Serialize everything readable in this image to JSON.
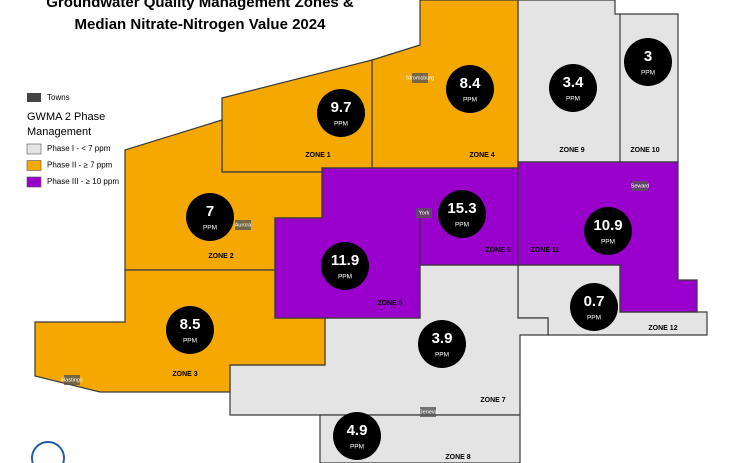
{
  "title": [
    "Groundwater Quality Management Zones &",
    "Median Nitrate-Nitrogen Value 2024"
  ],
  "legend": {
    "towns": "Towns",
    "heading": [
      "GWMA 2 Phase",
      "Management"
    ],
    "items": [
      {
        "label": "Phase I - < 7 ppm",
        "color": "#e4e4e4"
      },
      {
        "label": "Phase II - ≥ 7 ppm",
        "color": "#f5a800"
      },
      {
        "label": "Phase III - ≥ 10 ppm",
        "color": "#9a00cc"
      }
    ]
  },
  "unit": "PPM",
  "zones": [
    {
      "name": "ZONE 1",
      "value": 9.7
    },
    {
      "name": "ZONE 4",
      "value": 8.4
    },
    {
      "name": "ZONE 9",
      "value": 3.4
    },
    {
      "name": "ZONE 10",
      "value": 3
    },
    {
      "name": "ZONE 2",
      "value": 7
    },
    {
      "name": "ZONE 5",
      "value": 15.3
    },
    {
      "name": "ZONE 11",
      "value": 10.9
    },
    {
      "name": "ZONE 6",
      "value": 11.9
    },
    {
      "name": "ZONE 12",
      "value": 0.7
    },
    {
      "name": "ZONE 3",
      "value": 8.5
    },
    {
      "name": "ZONE 7",
      "value": 3.9
    },
    {
      "name": "ZONE 8",
      "value": 4.9
    }
  ],
  "towns": [
    "Stromsburg",
    "Aurora",
    "York",
    "Seward",
    "Hastings",
    "Geneva"
  ]
}
